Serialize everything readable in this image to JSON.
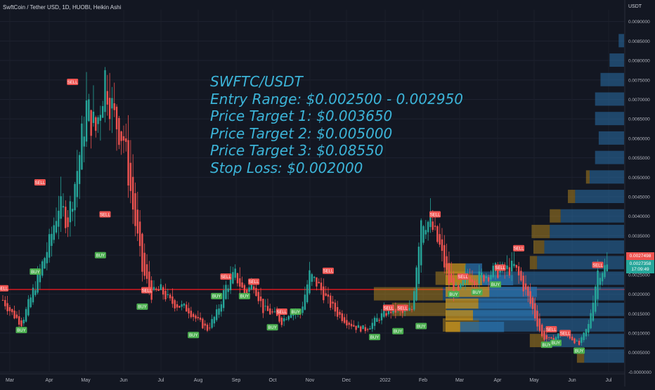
{
  "header": {
    "symbol_line": "SwftCoin / Tether USD, 1D, HUOBI, Heikin Ashi"
  },
  "price_axis": {
    "unit": "USDT"
  },
  "badges": {
    "current_price": "0.0027498",
    "price_2": "0.0027358",
    "countdown": "17:09:49"
  },
  "colors": {
    "background": "#131722",
    "up": "#26a69a",
    "down": "#ef5350",
    "annotation": "#3cb4d8",
    "support_line": "#e8191f",
    "vp_blue": "#2a6fa8",
    "vp_gold": "#c9961f",
    "buy_label": "#4caf50",
    "sell_label": "#ef5350"
  },
  "annotation": {
    "lines": [
      "SWFTC/USDT",
      "Entry Range: $0.002500 - 0.002950",
      "Price Target 1: $0.003650",
      "Price Target 2: $0.005000",
      "Price Target 3: $0.08550",
      "Stop Loss: $0.002000"
    ]
  },
  "chart_data": {
    "type": "candlestick",
    "x_ticks": [
      "Mar",
      "Apr",
      "May",
      "Jun",
      "Jul",
      "Aug",
      "Sep",
      "Oct",
      "Nov",
      "Dec",
      "2022",
      "Feb",
      "Mar",
      "Apr",
      "May",
      "Jun",
      "Jul"
    ],
    "y_ticks": [
      "0.0090000",
      "0.0085000",
      "0.0080000",
      "0.0075000",
      "0.0070000",
      "0.0065000",
      "0.0060000",
      "0.0055000",
      "0.0050000",
      "0.0045000",
      "0.0040000",
      "0.0035000",
      "0.0030000",
      "0.0025000",
      "0.0020000",
      "0.0015000",
      "0.0010000",
      "0.0005000",
      "-0.0000000"
    ],
    "ylim": [
      -1e-05,
      0.0093
    ],
    "support_level": 0.00212,
    "price_series": [
      {
        "x": 0,
        "y": 0.00185
      },
      {
        "x": 2,
        "y": 0.0015
      },
      {
        "x": 4,
        "y": 0.00125
      },
      {
        "x": 6,
        "y": 0.0019
      },
      {
        "x": 8,
        "y": 0.0026
      },
      {
        "x": 10,
        "y": 0.0033
      },
      {
        "x": 12,
        "y": 0.0043
      },
      {
        "x": 14,
        "y": 0.0039
      },
      {
        "x": 16,
        "y": 0.0052
      },
      {
        "x": 18,
        "y": 0.0068
      },
      {
        "x": 20,
        "y": 0.0062
      },
      {
        "x": 22,
        "y": 0.0076
      },
      {
        "x": 24,
        "y": 0.0065
      },
      {
        "x": 26,
        "y": 0.006
      },
      {
        "x": 28,
        "y": 0.0042
      },
      {
        "x": 30,
        "y": 0.0026
      },
      {
        "x": 32,
        "y": 0.002
      },
      {
        "x": 34,
        "y": 0.0021
      },
      {
        "x": 36,
        "y": 0.0018
      },
      {
        "x": 38,
        "y": 0.0017
      },
      {
        "x": 40,
        "y": 0.0016
      },
      {
        "x": 42,
        "y": 0.0013
      },
      {
        "x": 44,
        "y": 0.0011
      },
      {
        "x": 46,
        "y": 0.0015
      },
      {
        "x": 48,
        "y": 0.0022
      },
      {
        "x": 50,
        "y": 0.0025
      },
      {
        "x": 52,
        "y": 0.002
      },
      {
        "x": 54,
        "y": 0.0023
      },
      {
        "x": 56,
        "y": 0.0016
      },
      {
        "x": 58,
        "y": 0.0015
      },
      {
        "x": 60,
        "y": 0.0013
      },
      {
        "x": 62,
        "y": 0.0016
      },
      {
        "x": 64,
        "y": 0.0015
      },
      {
        "x": 66,
        "y": 0.0025
      },
      {
        "x": 68,
        "y": 0.0022
      },
      {
        "x": 70,
        "y": 0.0018
      },
      {
        "x": 72,
        "y": 0.0015
      },
      {
        "x": 74,
        "y": 0.0013
      },
      {
        "x": 76,
        "y": 0.00115
      },
      {
        "x": 78,
        "y": 0.0011
      },
      {
        "x": 80,
        "y": 0.0013
      },
      {
        "x": 82,
        "y": 0.0015
      },
      {
        "x": 84,
        "y": 0.0016
      },
      {
        "x": 86,
        "y": 0.0015
      },
      {
        "x": 88,
        "y": 0.0016
      },
      {
        "x": 90,
        "y": 0.004
      },
      {
        "x": 92,
        "y": 0.0038
      },
      {
        "x": 94,
        "y": 0.0032
      },
      {
        "x": 96,
        "y": 0.0023
      },
      {
        "x": 98,
        "y": 0.002
      },
      {
        "x": 100,
        "y": 0.0025
      },
      {
        "x": 102,
        "y": 0.0024
      },
      {
        "x": 104,
        "y": 0.0025
      },
      {
        "x": 106,
        "y": 0.0026
      },
      {
        "x": 108,
        "y": 0.0026
      },
      {
        "x": 110,
        "y": 0.0027
      },
      {
        "x": 112,
        "y": 0.0022
      },
      {
        "x": 114,
        "y": 0.0016
      },
      {
        "x": 116,
        "y": 0.0009
      },
      {
        "x": 118,
        "y": 0.0008
      },
      {
        "x": 120,
        "y": 0.001
      },
      {
        "x": 122,
        "y": 0.0009
      },
      {
        "x": 124,
        "y": 0.0007
      },
      {
        "x": 126,
        "y": 0.0012
      },
      {
        "x": 128,
        "y": 0.0026
      },
      {
        "x": 130,
        "y": 0.0027
      }
    ],
    "signals": [
      {
        "type": "SELL",
        "x": 0,
        "price": 0.00215
      },
      {
        "type": "BUY",
        "x": 4,
        "price": 0.00108
      },
      {
        "type": "BUY",
        "x": 7,
        "price": 0.00258
      },
      {
        "type": "SELL",
        "x": 8,
        "price": 0.00487
      },
      {
        "type": "SELL",
        "x": 15,
        "price": 0.00745
      },
      {
        "type": "SELL",
        "x": 22,
        "price": 0.00405
      },
      {
        "type": "BUY",
        "x": 21,
        "price": 0.003
      },
      {
        "type": "BUY",
        "x": 30,
        "price": 0.00168
      },
      {
        "type": "SELL",
        "x": 31,
        "price": 0.0021
      },
      {
        "type": "BUY",
        "x": 41,
        "price": 0.00095
      },
      {
        "type": "BUY",
        "x": 46,
        "price": 0.00195
      },
      {
        "type": "SELL",
        "x": 48,
        "price": 0.00245
      },
      {
        "type": "BUY",
        "x": 52,
        "price": 0.00195
      },
      {
        "type": "SELL",
        "x": 54,
        "price": 0.00232
      },
      {
        "type": "BUY",
        "x": 58,
        "price": 0.00115
      },
      {
        "type": "SELL",
        "x": 60,
        "price": 0.00155
      },
      {
        "type": "BUY",
        "x": 63,
        "price": 0.00155
      },
      {
        "type": "SELL",
        "x": 70,
        "price": 0.0026
      },
      {
        "type": "BUY",
        "x": 80,
        "price": 0.0009
      },
      {
        "type": "SELL",
        "x": 83,
        "price": 0.00165
      },
      {
        "type": "BUY",
        "x": 85,
        "price": 0.00105
      },
      {
        "type": "SELL",
        "x": 86,
        "price": 0.00165
      },
      {
        "type": "BUY",
        "x": 90,
        "price": 0.00118
      },
      {
        "type": "SELL",
        "x": 93,
        "price": 0.00405
      },
      {
        "type": "BUY",
        "x": 97,
        "price": 0.002
      },
      {
        "type": "SELL",
        "x": 99,
        "price": 0.00245
      },
      {
        "type": "BUY",
        "x": 102,
        "price": 0.00205
      },
      {
        "type": "BUY",
        "x": 106,
        "price": 0.00225
      },
      {
        "type": "SELL",
        "x": 107,
        "price": 0.00268
      },
      {
        "type": "SELL",
        "x": 111,
        "price": 0.00318
      },
      {
        "type": "BUY",
        "x": 117,
        "price": 0.0007
      },
      {
        "type": "SELL",
        "x": 118,
        "price": 0.0011
      },
      {
        "type": "BUY",
        "x": 119,
        "price": 0.00075
      },
      {
        "type": "SELL",
        "x": 121,
        "price": 0.001
      },
      {
        "type": "BUY",
        "x": 124,
        "price": 0.00055
      },
      {
        "type": "SELL",
        "x": 128,
        "price": 0.00275
      }
    ],
    "volume_profile_right": [
      {
        "price": 0.0085,
        "blue": 0.03,
        "gold": 0.0
      },
      {
        "price": 0.008,
        "blue": 0.08,
        "gold": 0.0
      },
      {
        "price": 0.0075,
        "blue": 0.13,
        "gold": 0.0
      },
      {
        "price": 0.007,
        "blue": 0.16,
        "gold": 0.0
      },
      {
        "price": 0.0065,
        "blue": 0.16,
        "gold": 0.0
      },
      {
        "price": 0.006,
        "blue": 0.14,
        "gold": 0.0
      },
      {
        "price": 0.0055,
        "blue": 0.16,
        "gold": 0.0
      },
      {
        "price": 0.005,
        "blue": 0.19,
        "gold": 0.02
      },
      {
        "price": 0.0045,
        "blue": 0.27,
        "gold": 0.04
      },
      {
        "price": 0.004,
        "blue": 0.35,
        "gold": 0.06
      },
      {
        "price": 0.0036,
        "blue": 0.41,
        "gold": 0.1
      },
      {
        "price": 0.0032,
        "blue": 0.44,
        "gold": 0.06
      },
      {
        "price": 0.0028,
        "blue": 0.48,
        "gold": 0.04
      },
      {
        "price": 0.0024,
        "blue": 0.84,
        "gold": 0.2
      },
      {
        "price": 0.002,
        "blue": 1.0,
        "gold": 0.38
      },
      {
        "price": 0.0016,
        "blue": 0.98,
        "gold": 0.3
      },
      {
        "price": 0.0012,
        "blue": 0.8,
        "gold": 0.2
      },
      {
        "price": 0.0008,
        "blue": 0.44,
        "gold": 0.08
      },
      {
        "price": 0.0004,
        "blue": 0.22,
        "gold": 0.04
      }
    ],
    "volume_profile_mid": [
      {
        "price": 0.00265,
        "blue": 0.18,
        "gold": 0.22
      },
      {
        "price": 0.00235,
        "blue": 0.34,
        "gold": 0.4
      },
      {
        "price": 0.00205,
        "blue": 0.52,
        "gold": 0.48
      },
      {
        "price": 0.00175,
        "blue": 0.62,
        "gold": 0.36
      },
      {
        "price": 0.00145,
        "blue": 0.7,
        "gold": 0.3
      },
      {
        "price": 0.00115,
        "blue": 0.48,
        "gold": 0.16
      }
    ]
  }
}
